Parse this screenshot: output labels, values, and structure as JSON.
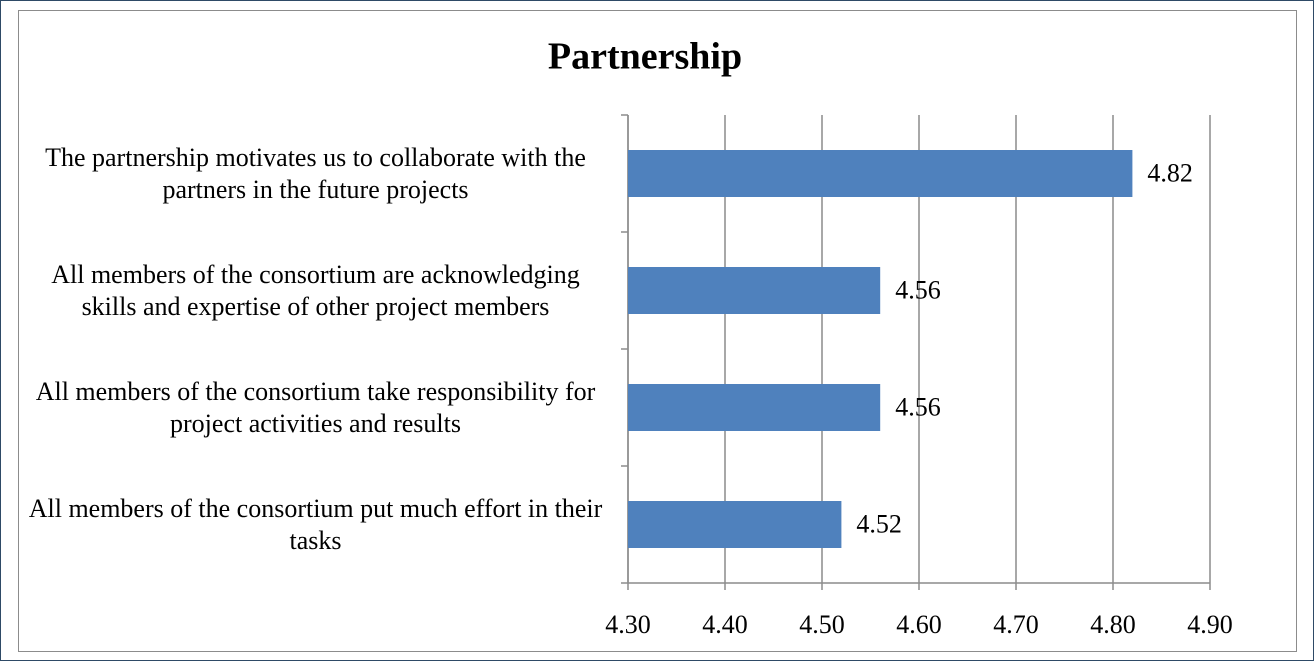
{
  "chart_data": {
    "type": "bar",
    "orientation": "horizontal",
    "title": "Partnership",
    "categories": [
      "The partnership motivates us to collaborate with the partners in the future projects",
      "All members of the consortium are acknowledging skills and expertise of other project members",
      "All members of the consortium take responsibility for project activities and results",
      "All members of the consortium put much effort in their tasks"
    ],
    "values": [
      4.82,
      4.56,
      4.56,
      4.52
    ],
    "color": "#4f81bd",
    "xlim": [
      4.3,
      4.9
    ],
    "xticks": [
      {
        "value": 4.3,
        "label": "4.30"
      },
      {
        "value": 4.4,
        "label": "4.40"
      },
      {
        "value": 4.5,
        "label": "4.50"
      },
      {
        "value": 4.6,
        "label": "4.60"
      },
      {
        "value": 4.7,
        "label": "4.70"
      },
      {
        "value": 4.8,
        "label": "4.80"
      },
      {
        "value": 4.9,
        "label": "4.90"
      }
    ],
    "grid": true
  }
}
